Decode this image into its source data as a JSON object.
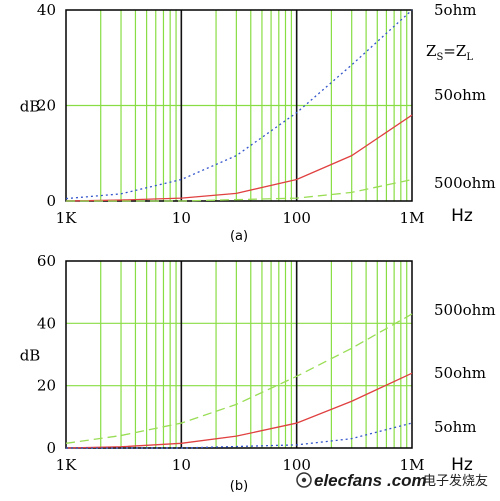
{
  "chart_data": [
    {
      "type": "line",
      "caption": "(a)",
      "x_tick_labels": [
        "1K",
        "10",
        "100",
        "1M"
      ],
      "x_unit": "Hz",
      "ylabel": "dB",
      "y_ticks": [
        0,
        20,
        40
      ],
      "ylim": [
        0,
        40
      ],
      "xlim": [
        1000,
        1000000
      ],
      "x_scale": "log",
      "grid": true,
      "annotation": {
        "base": "Z",
        "sub1": "S",
        "eq": "=",
        "base2": "Z",
        "sub2": "L"
      },
      "series": [
        {
          "name": "5ohm",
          "color": "#3355cc",
          "style": "dotted",
          "x": [
            1000,
            3000,
            10000,
            30000,
            100000,
            300000,
            1000000
          ],
          "y": [
            0.5,
            1.5,
            4.5,
            9.5,
            18.5,
            28.5,
            40
          ]
        },
        {
          "name": "50ohm",
          "color": "#e04040",
          "style": "solid",
          "x": [
            1000,
            3000,
            10000,
            30000,
            100000,
            300000,
            1000000
          ],
          "y": [
            0,
            0.2,
            0.6,
            1.6,
            4.5,
            9.5,
            18
          ]
        },
        {
          "name": "500ohm",
          "color": "#99dd55",
          "style": "dashed",
          "x": [
            1000,
            10000,
            100000,
            300000,
            1000000
          ],
          "y": [
            0,
            0,
            0.6,
            1.8,
            4.5
          ]
        }
      ]
    },
    {
      "type": "line",
      "caption": "(b)",
      "x_tick_labels": [
        "1K",
        "10",
        "100",
        "1M"
      ],
      "x_unit": "Hz",
      "ylabel": "dB",
      "y_ticks": [
        0,
        20,
        40,
        60
      ],
      "ylim": [
        0,
        60
      ],
      "xlim": [
        1000,
        1000000
      ],
      "x_scale": "log",
      "grid": true,
      "series": [
        {
          "name": "500ohm",
          "color": "#99dd55",
          "style": "dashed",
          "x": [
            1000,
            3000,
            10000,
            30000,
            100000,
            300000,
            1000000
          ],
          "y": [
            1.5,
            4,
            8,
            14,
            23,
            32,
            43
          ]
        },
        {
          "name": "50ohm",
          "color": "#e04040",
          "style": "solid",
          "x": [
            1000,
            3000,
            10000,
            30000,
            100000,
            300000,
            1000000
          ],
          "y": [
            0,
            0.4,
            1.5,
            3.8,
            8,
            15,
            24
          ]
        },
        {
          "name": "5ohm",
          "color": "#3355cc",
          "style": "dotted",
          "x": [
            1000,
            10000,
            100000,
            300000,
            1000000
          ],
          "y": [
            0,
            0,
            1,
            3,
            8
          ]
        }
      ]
    }
  ],
  "watermark": {
    "brand": "elecfans",
    "domain": ".com",
    "chinese": "电子发烧友"
  },
  "colors": {
    "major_grid": "#111111",
    "minor_grid": "#88dd44",
    "axis": "#000000"
  }
}
